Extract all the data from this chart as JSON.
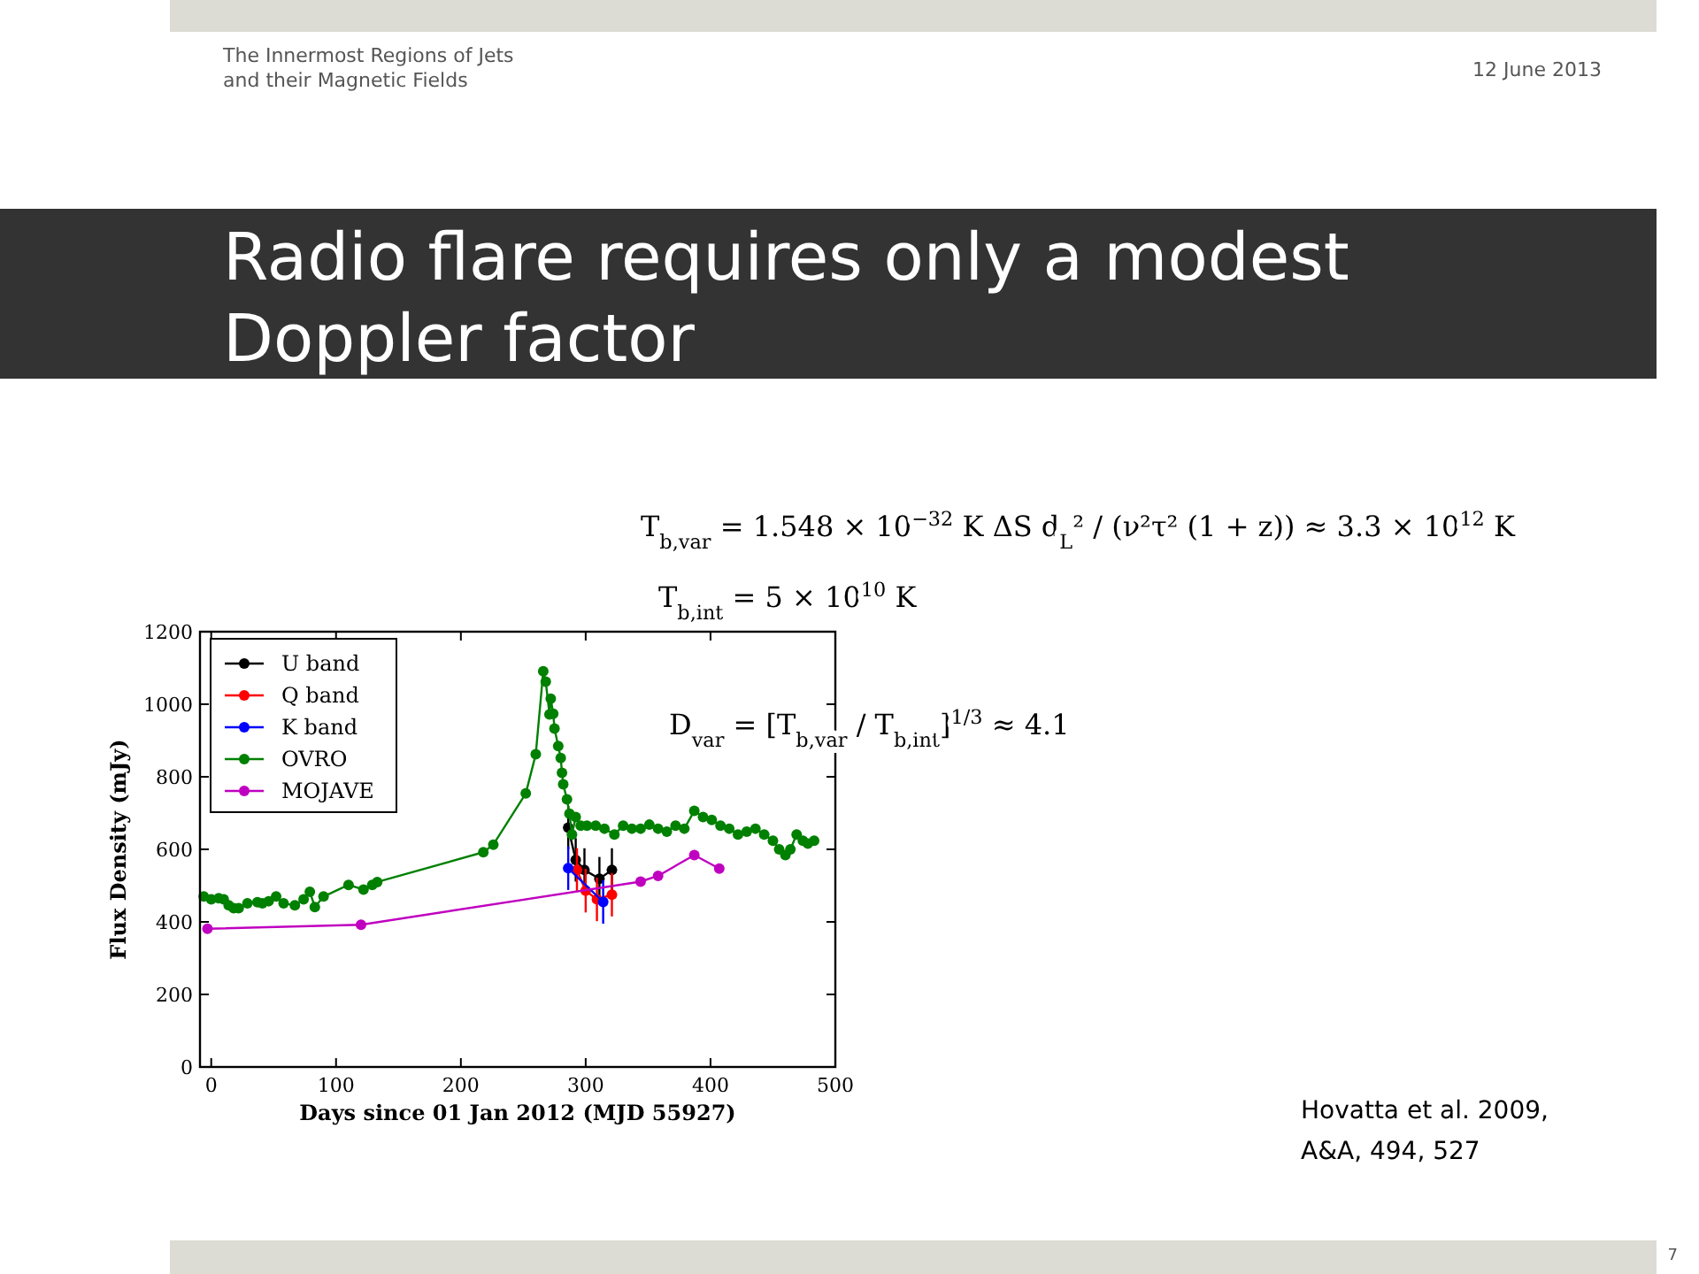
{
  "chart_data": {
    "type": "line",
    "title": "Radio flare requires only a modest Doppler factor",
    "xlabel": "Days since 01 Jan 2012 (MJD 55927)",
    "ylabel": "Flux Density (mJy)",
    "xlim": [
      -9,
      500
    ],
    "xticks": [
      0,
      100,
      200,
      300,
      400,
      500
    ],
    "ylim": [
      0,
      1200
    ],
    "yticks": [
      0,
      200,
      400,
      600,
      800,
      1000,
      1200
    ],
    "grid": false,
    "legend": "top left",
    "marker": "circle",
    "line_style": "solid",
    "annotations": [
      "The Innermost Regions of Jets and their Magnetic Fields",
      "12 June 2013",
      "T$_{b,var}$ = 1.548 × 10$^{−32}$ K ΔS d$_{L}$² / (ν²τ² (1 + z)) ≈ 3.3 × 10$^{12}$ K",
      "T$_{b,int}$ = 5 × 10$^{10}$ K",
      "D$_{var}$ = [T$_{b,var}$ / T$_{b,int}$]$^{1/3}$ ≈ 4.1",
      "Hovatta et al. 2009, A&A, 494, 527",
      "7"
    ],
    "series": [
      {
        "name": "U band",
        "color": "#000000",
        "x": [
          286,
          292,
          299,
          311,
          321
        ],
        "values": [
          660,
          571,
          543,
          519,
          543
        ],
        "errors": [
          60,
          60,
          60,
          60,
          60
        ]
      },
      {
        "name": "Q band",
        "color": "#ff0000",
        "x": [
          293,
          300,
          309,
          321
        ],
        "values": [
          543,
          486,
          462,
          475
        ],
        "errors": [
          60,
          60,
          60,
          60
        ]
      },
      {
        "name": "K band",
        "color": "#0000ff",
        "x": [
          286,
          314
        ],
        "values": [
          548,
          455
        ],
        "errors": [
          60,
          60
        ]
      },
      {
        "name": "OVRO",
        "color": "#008000",
        "x": [
          -6,
          0,
          6,
          10,
          14,
          18,
          22,
          29,
          37,
          41,
          46,
          52,
          58,
          67,
          74,
          79,
          83,
          90,
          110,
          122,
          129,
          133,
          218,
          226,
          252,
          260,
          266,
          268,
          271,
          272,
          274,
          275,
          278,
          280,
          281,
          282,
          285,
          287,
          289,
          292,
          296,
          301,
          308,
          315,
          323,
          330,
          337,
          344,
          351,
          358,
          365,
          372,
          379,
          387,
          394,
          401,
          408,
          415,
          422,
          429,
          436,
          443,
          450,
          455,
          460,
          464,
          469,
          474,
          478,
          483
        ],
        "values": [
          470,
          462,
          465,
          462,
          446,
          438,
          438,
          451,
          454,
          451,
          457,
          470,
          451,
          446,
          462,
          483,
          441,
          470,
          502,
          489,
          502,
          510,
          592,
          613,
          754,
          862,
          1091,
          1062,
          972,
          1015,
          974,
          933,
          885,
          852,
          811,
          779,
          738,
          698,
          641,
          689,
          665,
          665,
          665,
          657,
          641,
          665,
          657,
          657,
          668,
          657,
          649,
          665,
          657,
          706,
          689,
          681,
          665,
          657,
          641,
          649,
          657,
          641,
          624,
          600,
          584,
          600,
          641,
          624,
          616,
          624
        ]
      },
      {
        "name": "MOJAVE",
        "color": "#c000c0",
        "x": [
          -3,
          120,
          344,
          358,
          387,
          407
        ],
        "values": [
          381,
          392,
          511,
          527,
          584,
          547
        ]
      }
    ]
  }
}
